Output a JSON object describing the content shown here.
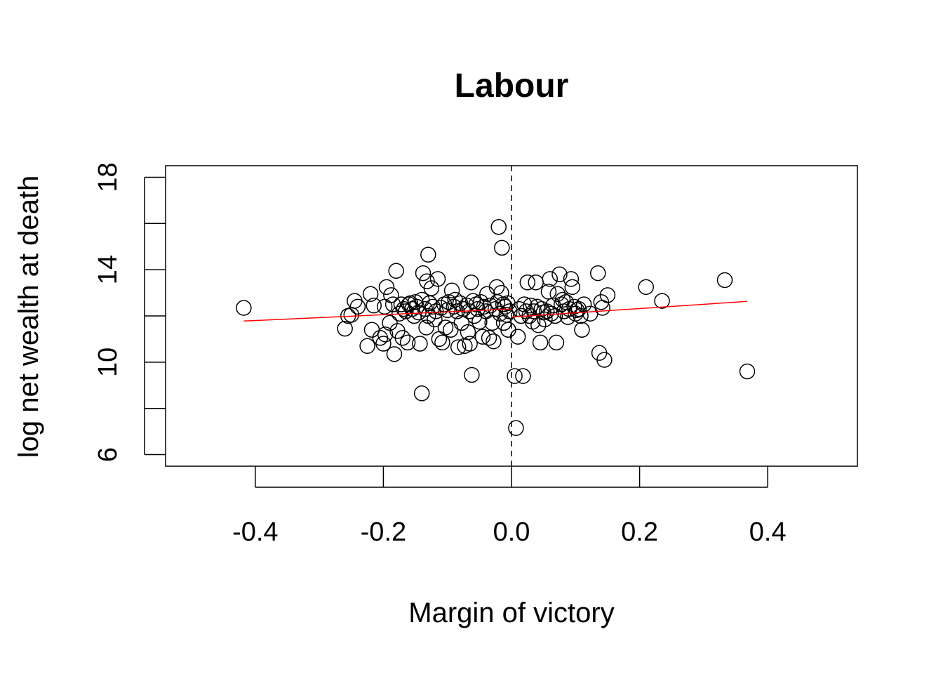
{
  "chart_data": {
    "type": "scatter",
    "title": "Labour",
    "xlabel": "Margin of victory",
    "ylabel": "log net wealth at death",
    "xlim": [
      -0.54,
      0.54
    ],
    "ylim": [
      5.5,
      18.5
    ],
    "xticks": [
      -0.4,
      -0.2,
      0.0,
      0.2,
      0.4
    ],
    "xtick_labels": [
      "-0.4",
      "-0.2",
      "0.0",
      "0.2",
      "0.4"
    ],
    "yticks": [
      6,
      10,
      14,
      18
    ],
    "ytick_labels": [
      "6",
      "10",
      "14",
      "18"
    ],
    "ytick_minor": [
      8,
      12,
      16
    ],
    "grid": false,
    "cutoff_x": 0.0,
    "colors": {
      "points": "#000000",
      "fit": "#ff0000",
      "cutoff": "#000000"
    },
    "fit_lines": [
      {
        "x": [
          -0.418,
          0.0
        ],
        "y": [
          11.78,
          12.3
        ]
      },
      {
        "x": [
          0.0,
          0.368
        ],
        "y": [
          11.95,
          12.63
        ]
      }
    ],
    "points": [
      [
        -0.418,
        12.35
      ],
      [
        -0.26,
        11.45
      ],
      [
        -0.255,
        12.0
      ],
      [
        -0.25,
        12.05
      ],
      [
        -0.245,
        12.65
      ],
      [
        -0.24,
        12.4
      ],
      [
        -0.225,
        10.7
      ],
      [
        -0.22,
        12.95
      ],
      [
        -0.218,
        11.4
      ],
      [
        -0.215,
        12.45
      ],
      [
        -0.205,
        11.05
      ],
      [
        -0.2,
        10.8
      ],
      [
        -0.198,
        12.4
      ],
      [
        -0.197,
        11.2
      ],
      [
        -0.195,
        13.25
      ],
      [
        -0.19,
        11.7
      ],
      [
        -0.188,
        12.9
      ],
      [
        -0.185,
        12.5
      ],
      [
        -0.183,
        10.35
      ],
      [
        -0.18,
        13.95
      ],
      [
        -0.178,
        11.35
      ],
      [
        -0.175,
        12.1
      ],
      [
        -0.172,
        12.5
      ],
      [
        -0.17,
        11.05
      ],
      [
        -0.168,
        12.3
      ],
      [
        -0.165,
        12.2
      ],
      [
        -0.162,
        10.85
      ],
      [
        -0.16,
        12.5
      ],
      [
        -0.158,
        12.55
      ],
      [
        -0.155,
        12.3
      ],
      [
        -0.152,
        12.0
      ],
      [
        -0.15,
        12.6
      ],
      [
        -0.148,
        12.4
      ],
      [
        -0.145,
        12.15
      ],
      [
        -0.143,
        10.8
      ],
      [
        -0.14,
        12.7
      ],
      [
        -0.14,
        8.65
      ],
      [
        -0.138,
        13.85
      ],
      [
        -0.135,
        12.3
      ],
      [
        -0.133,
        11.5
      ],
      [
        -0.132,
        13.5
      ],
      [
        -0.13,
        12.0
      ],
      [
        -0.13,
        14.65
      ],
      [
        -0.128,
        12.55
      ],
      [
        -0.125,
        13.2
      ],
      [
        -0.123,
        12.4
      ],
      [
        -0.12,
        11.85
      ],
      [
        -0.118,
        12.2
      ],
      [
        -0.115,
        13.6
      ],
      [
        -0.113,
        11.0
      ],
      [
        -0.11,
        12.35
      ],
      [
        -0.108,
        10.85
      ],
      [
        -0.105,
        12.5
      ],
      [
        -0.103,
        11.5
      ],
      [
        -0.1,
        12.25
      ],
      [
        -0.098,
        12.6
      ],
      [
        -0.095,
        11.4
      ],
      [
        -0.093,
        13.1
      ],
      [
        -0.09,
        12.4
      ],
      [
        -0.088,
        12.7
      ],
      [
        -0.085,
        12.2
      ],
      [
        -0.083,
        10.65
      ],
      [
        -0.08,
        12.55
      ],
      [
        -0.078,
        11.7
      ],
      [
        -0.075,
        12.3
      ],
      [
        -0.073,
        10.7
      ],
      [
        -0.07,
        12.45
      ],
      [
        -0.068,
        11.3
      ],
      [
        -0.066,
        12.2
      ],
      [
        -0.065,
        10.8
      ],
      [
        -0.063,
        13.45
      ],
      [
        -0.062,
        9.45
      ],
      [
        -0.06,
        12.65
      ],
      [
        -0.058,
        12.0
      ],
      [
        -0.055,
        12.5
      ],
      [
        -0.053,
        12.3
      ],
      [
        -0.05,
        11.75
      ],
      [
        -0.048,
        12.6
      ],
      [
        -0.045,
        11.1
      ],
      [
        -0.043,
        12.4
      ],
      [
        -0.04,
        12.2
      ],
      [
        -0.038,
        12.95
      ],
      [
        -0.035,
        11.05
      ],
      [
        -0.033,
        12.45
      ],
      [
        -0.03,
        11.7
      ],
      [
        -0.028,
        10.9
      ],
      [
        -0.025,
        12.3
      ],
      [
        -0.023,
        13.25
      ],
      [
        -0.022,
        12.6
      ],
      [
        -0.02,
        15.85
      ],
      [
        -0.018,
        12.1
      ],
      [
        -0.016,
        13.0
      ],
      [
        -0.015,
        14.95
      ],
      [
        -0.013,
        12.5
      ],
      [
        -0.012,
        11.7
      ],
      [
        -0.01,
        12.4
      ],
      [
        -0.008,
        12.05
      ],
      [
        -0.006,
        12.55
      ],
      [
        -0.005,
        11.4
      ],
      [
        -0.003,
        12.2
      ],
      [
        0.005,
        9.4
      ],
      [
        0.007,
        7.15
      ],
      [
        0.01,
        11.1
      ],
      [
        0.012,
        12.3
      ],
      [
        0.015,
        12.0
      ],
      [
        0.018,
        9.4
      ],
      [
        0.02,
        12.5
      ],
      [
        0.023,
        12.2
      ],
      [
        0.025,
        13.45
      ],
      [
        0.028,
        12.0
      ],
      [
        0.03,
        12.45
      ],
      [
        0.033,
        11.75
      ],
      [
        0.035,
        12.2
      ],
      [
        0.038,
        13.45
      ],
      [
        0.04,
        12.4
      ],
      [
        0.042,
        11.6
      ],
      [
        0.045,
        10.85
      ],
      [
        0.047,
        12.3
      ],
      [
        0.05,
        12.15
      ],
      [
        0.052,
        11.85
      ],
      [
        0.055,
        12.2
      ],
      [
        0.058,
        13.05
      ],
      [
        0.06,
        13.6
      ],
      [
        0.062,
        12.1
      ],
      [
        0.065,
        12.45
      ],
      [
        0.068,
        12.0
      ],
      [
        0.07,
        10.85
      ],
      [
        0.072,
        12.95
      ],
      [
        0.075,
        13.8
      ],
      [
        0.078,
        12.5
      ],
      [
        0.08,
        12.7
      ],
      [
        0.082,
        12.2
      ],
      [
        0.085,
        12.6
      ],
      [
        0.088,
        11.95
      ],
      [
        0.09,
        12.3
      ],
      [
        0.093,
        13.6
      ],
      [
        0.095,
        13.25
      ],
      [
        0.098,
        12.4
      ],
      [
        0.1,
        12.1
      ],
      [
        0.102,
        12.25
      ],
      [
        0.105,
        12.3
      ],
      [
        0.108,
        12.0
      ],
      [
        0.11,
        11.4
      ],
      [
        0.113,
        12.5
      ],
      [
        0.123,
        12.1
      ],
      [
        0.135,
        13.85
      ],
      [
        0.137,
        10.4
      ],
      [
        0.14,
        12.6
      ],
      [
        0.142,
        12.35
      ],
      [
        0.145,
        10.1
      ],
      [
        0.15,
        12.9
      ],
      [
        0.21,
        13.25
      ],
      [
        0.235,
        12.65
      ],
      [
        0.333,
        13.55
      ],
      [
        0.368,
        9.6
      ]
    ]
  }
}
